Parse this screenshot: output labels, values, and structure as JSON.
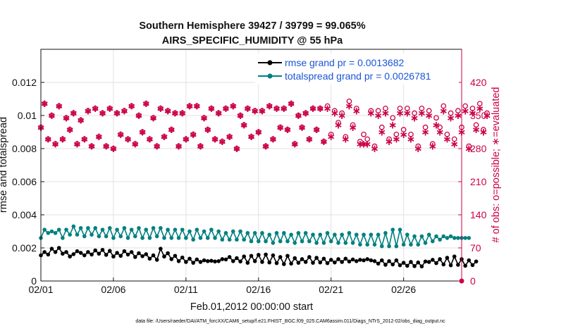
{
  "chart_data": {
    "type": "line",
    "title": [
      "Southern Hemisphere 39427 / 39799 = 99.065%",
      "AIRS_SPECIFIC_HUMIDITY @ 55 hPa"
    ],
    "xlabel": "Feb.01,2012 00:00:00 start",
    "ylabel_left": "rmse and totalspread",
    "ylabel_right": "# of obs: o=possible; ∗=evaluated",
    "x_tick_labels": [
      "02/01",
      "02/06",
      "02/11",
      "02/16",
      "02/21",
      "02/26"
    ],
    "x_tick_days": [
      0,
      5,
      10,
      15,
      20,
      25
    ],
    "xlim_days": [
      0,
      29.0
    ],
    "y_left_ticks": [
      "0",
      "0.002",
      "0.004",
      "0.006",
      "0.008",
      "0.01",
      "0.012"
    ],
    "ylim_left": [
      0,
      0.014
    ],
    "y_right_ticks": [
      "0",
      "70",
      "140",
      "210",
      "280",
      "350",
      "420"
    ],
    "ylim_right": [
      0,
      490
    ],
    "grid": true,
    "legend_position": "top-right",
    "footer": "data file: /Users/raeder/DAI/ATM_forcXX/CAM6_setup/f.e21.FHIST_BGC.f09_025.CAM6assim.011/Diags_NTrS_2012-02/obs_diag_output.nc",
    "colors": {
      "rmse": "#000000",
      "spread": "#00807f",
      "obs": "#cc0044",
      "axis": "#111111",
      "grid": "#e2e2e2",
      "legend_text": "#1a55d6"
    },
    "series": [
      {
        "name": "rmse grand pr = 0.0013682",
        "axis": "left",
        "marker": "circle",
        "x_step_days": 0.25,
        "values": [
          0.00155,
          0.00175,
          0.0016,
          0.00195,
          0.00175,
          0.002,
          0.00165,
          0.00175,
          0.00148,
          0.00162,
          0.0018,
          0.0017,
          0.00155,
          0.00175,
          0.0016,
          0.00185,
          0.00165,
          0.00188,
          0.00158,
          0.00182,
          0.00148,
          0.0017,
          0.00152,
          0.0018,
          0.0016,
          0.00175,
          0.00145,
          0.00168,
          0.0015,
          0.00162,
          0.00135,
          0.00155,
          0.00128,
          0.00195,
          0.00148,
          0.00168,
          0.00132,
          0.00152,
          0.0012,
          0.00142,
          0.00115,
          0.00135,
          0.0011,
          0.0013,
          0.00115,
          0.00125,
          0.0012,
          0.00122,
          0.00118,
          0.0012,
          0.00132,
          0.0013,
          0.00145,
          0.0012,
          0.00138,
          0.00118,
          0.00148,
          0.0011,
          0.00152,
          0.0012,
          0.00158,
          0.00115,
          0.0016,
          0.00112,
          0.00155,
          0.00108,
          0.00145,
          0.00102,
          0.00152,
          0.00105,
          0.00138,
          0.0011,
          0.00132,
          0.00115,
          0.00145,
          0.0011,
          0.0014,
          0.00112,
          0.00135,
          0.00108,
          0.00128,
          0.00112,
          0.00132,
          0.00115,
          0.00135,
          0.00118,
          0.0013,
          0.0012,
          0.00128,
          0.00125,
          0.00132,
          0.00125,
          0.0012,
          0.00105,
          0.00125,
          0.00098,
          0.0012,
          0.001,
          0.00125,
          0.00095,
          0.0011,
          0.00092,
          0.00115,
          0.0009,
          0.00112,
          0.00088,
          0.00118,
          0.00115,
          0.00128,
          0.00108,
          0.00132,
          0.001,
          0.0014,
          0.00095,
          0.00148,
          0.00098,
          0.00132,
          0.00092,
          0.00125,
          0.00096,
          0.00118
        ]
      },
      {
        "name": "totalspread grand pr = 0.0026781",
        "axis": "left",
        "marker": "circle",
        "x_step_days": 0.25,
        "values": [
          0.0026,
          0.0031,
          0.0029,
          0.003,
          0.0029,
          0.0031,
          0.0026,
          0.0031,
          0.0028,
          0.0033,
          0.0028,
          0.0032,
          0.0027,
          0.0032,
          0.0028,
          0.0032,
          0.0027,
          0.0031,
          0.0027,
          0.0032,
          0.0026,
          0.0031,
          0.0027,
          0.0032,
          0.0026,
          0.0031,
          0.0027,
          0.0032,
          0.0026,
          0.0031,
          0.0026,
          0.0032,
          0.0027,
          0.0032,
          0.0026,
          0.0031,
          0.0026,
          0.0031,
          0.0026,
          0.0031,
          0.0026,
          0.003,
          0.0025,
          0.0031,
          0.0026,
          0.003,
          0.0026,
          0.0031,
          0.0026,
          0.003,
          0.0025,
          0.0029,
          0.0025,
          0.003,
          0.0025,
          0.003,
          0.0025,
          0.0029,
          0.0024,
          0.0029,
          0.0024,
          0.0029,
          0.0024,
          0.0028,
          0.0023,
          0.0029,
          0.0024,
          0.0029,
          0.0024,
          0.0028,
          0.0023,
          0.0029,
          0.0024,
          0.0029,
          0.0024,
          0.0028,
          0.0023,
          0.0028,
          0.0023,
          0.0029,
          0.0024,
          0.0028,
          0.0023,
          0.0028,
          0.0023,
          0.0029,
          0.0023,
          0.0028,
          0.0022,
          0.0028,
          0.0022,
          0.0028,
          0.0022,
          0.0028,
          0.0021,
          0.0029,
          0.0021,
          0.0031,
          0.0021,
          0.0031,
          0.0022,
          0.0028,
          0.0022,
          0.0027,
          0.0022,
          0.0027,
          0.0023,
          0.0028,
          0.0024,
          0.0027,
          0.0025,
          0.0027,
          0.0026,
          0.0027,
          0.0026,
          0.0026,
          0.0026,
          0.0026,
          0.0026
        ]
      },
      {
        "name": "observations possible",
        "axis": "right",
        "marker": "open-circle",
        "x_step_days": 0.25,
        "values": [
          325,
          375,
          300,
          350,
          290,
          370,
          300,
          345,
          320,
          355,
          290,
          340,
          300,
          360,
          285,
          365,
          305,
          355,
          285,
          365,
          280,
          355,
          310,
          360,
          300,
          370,
          290,
          350,
          315,
          375,
          300,
          345,
          285,
          365,
          305,
          360,
          320,
          355,
          285,
          355,
          300,
          370,
          310,
          370,
          285,
          345,
          320,
          365,
          300,
          355,
          295,
          365,
          305,
          370,
          280,
          350,
          330,
          365,
          305,
          360,
          315,
          360,
          285,
          370,
          300,
          365,
          325,
          365,
          320,
          375,
          290,
          350,
          325,
          355,
          300,
          365,
          320,
          365,
          295,
          370,
          310,
          360,
          335,
          355,
          305,
          380,
          330,
          365,
          295,
          310,
          300,
          360,
          285,
          360,
          325,
          365,
          300,
          345,
          310,
          365,
          320,
          365,
          310,
          355,
          285,
          365,
          325,
          360,
          290,
          345,
          325,
          370,
          310,
          355,
          300,
          360,
          325,
          370,
          285,
          365,
          330,
          375,
          320,
          355
        ]
      },
      {
        "name": "observations evaluated",
        "axis": "right",
        "marker": "asterisk",
        "x_step_days": 0.25,
        "values": [
          325,
          375,
          300,
          350,
          290,
          370,
          300,
          345,
          320,
          355,
          290,
          340,
          300,
          360,
          285,
          365,
          305,
          355,
          285,
          365,
          280,
          355,
          310,
          360,
          300,
          370,
          290,
          350,
          315,
          375,
          300,
          345,
          285,
          365,
          305,
          360,
          320,
          355,
          285,
          355,
          300,
          370,
          310,
          370,
          285,
          345,
          320,
          365,
          300,
          355,
          295,
          365,
          305,
          370,
          280,
          350,
          330,
          365,
          305,
          360,
          315,
          360,
          285,
          370,
          300,
          365,
          325,
          365,
          320,
          375,
          290,
          350,
          325,
          355,
          300,
          365,
          320,
          365,
          295,
          365,
          305,
          355,
          330,
          350,
          300,
          370,
          325,
          360,
          290,
          290,
          290,
          355,
          280,
          350,
          315,
          355,
          295,
          330,
          300,
          355,
          310,
          355,
          300,
          345,
          280,
          355,
          315,
          350,
          285,
          330,
          315,
          360,
          300,
          345,
          290,
          350,
          315,
          360,
          280,
          355,
          320,
          365,
          315,
          350
        ]
      }
    ]
  }
}
